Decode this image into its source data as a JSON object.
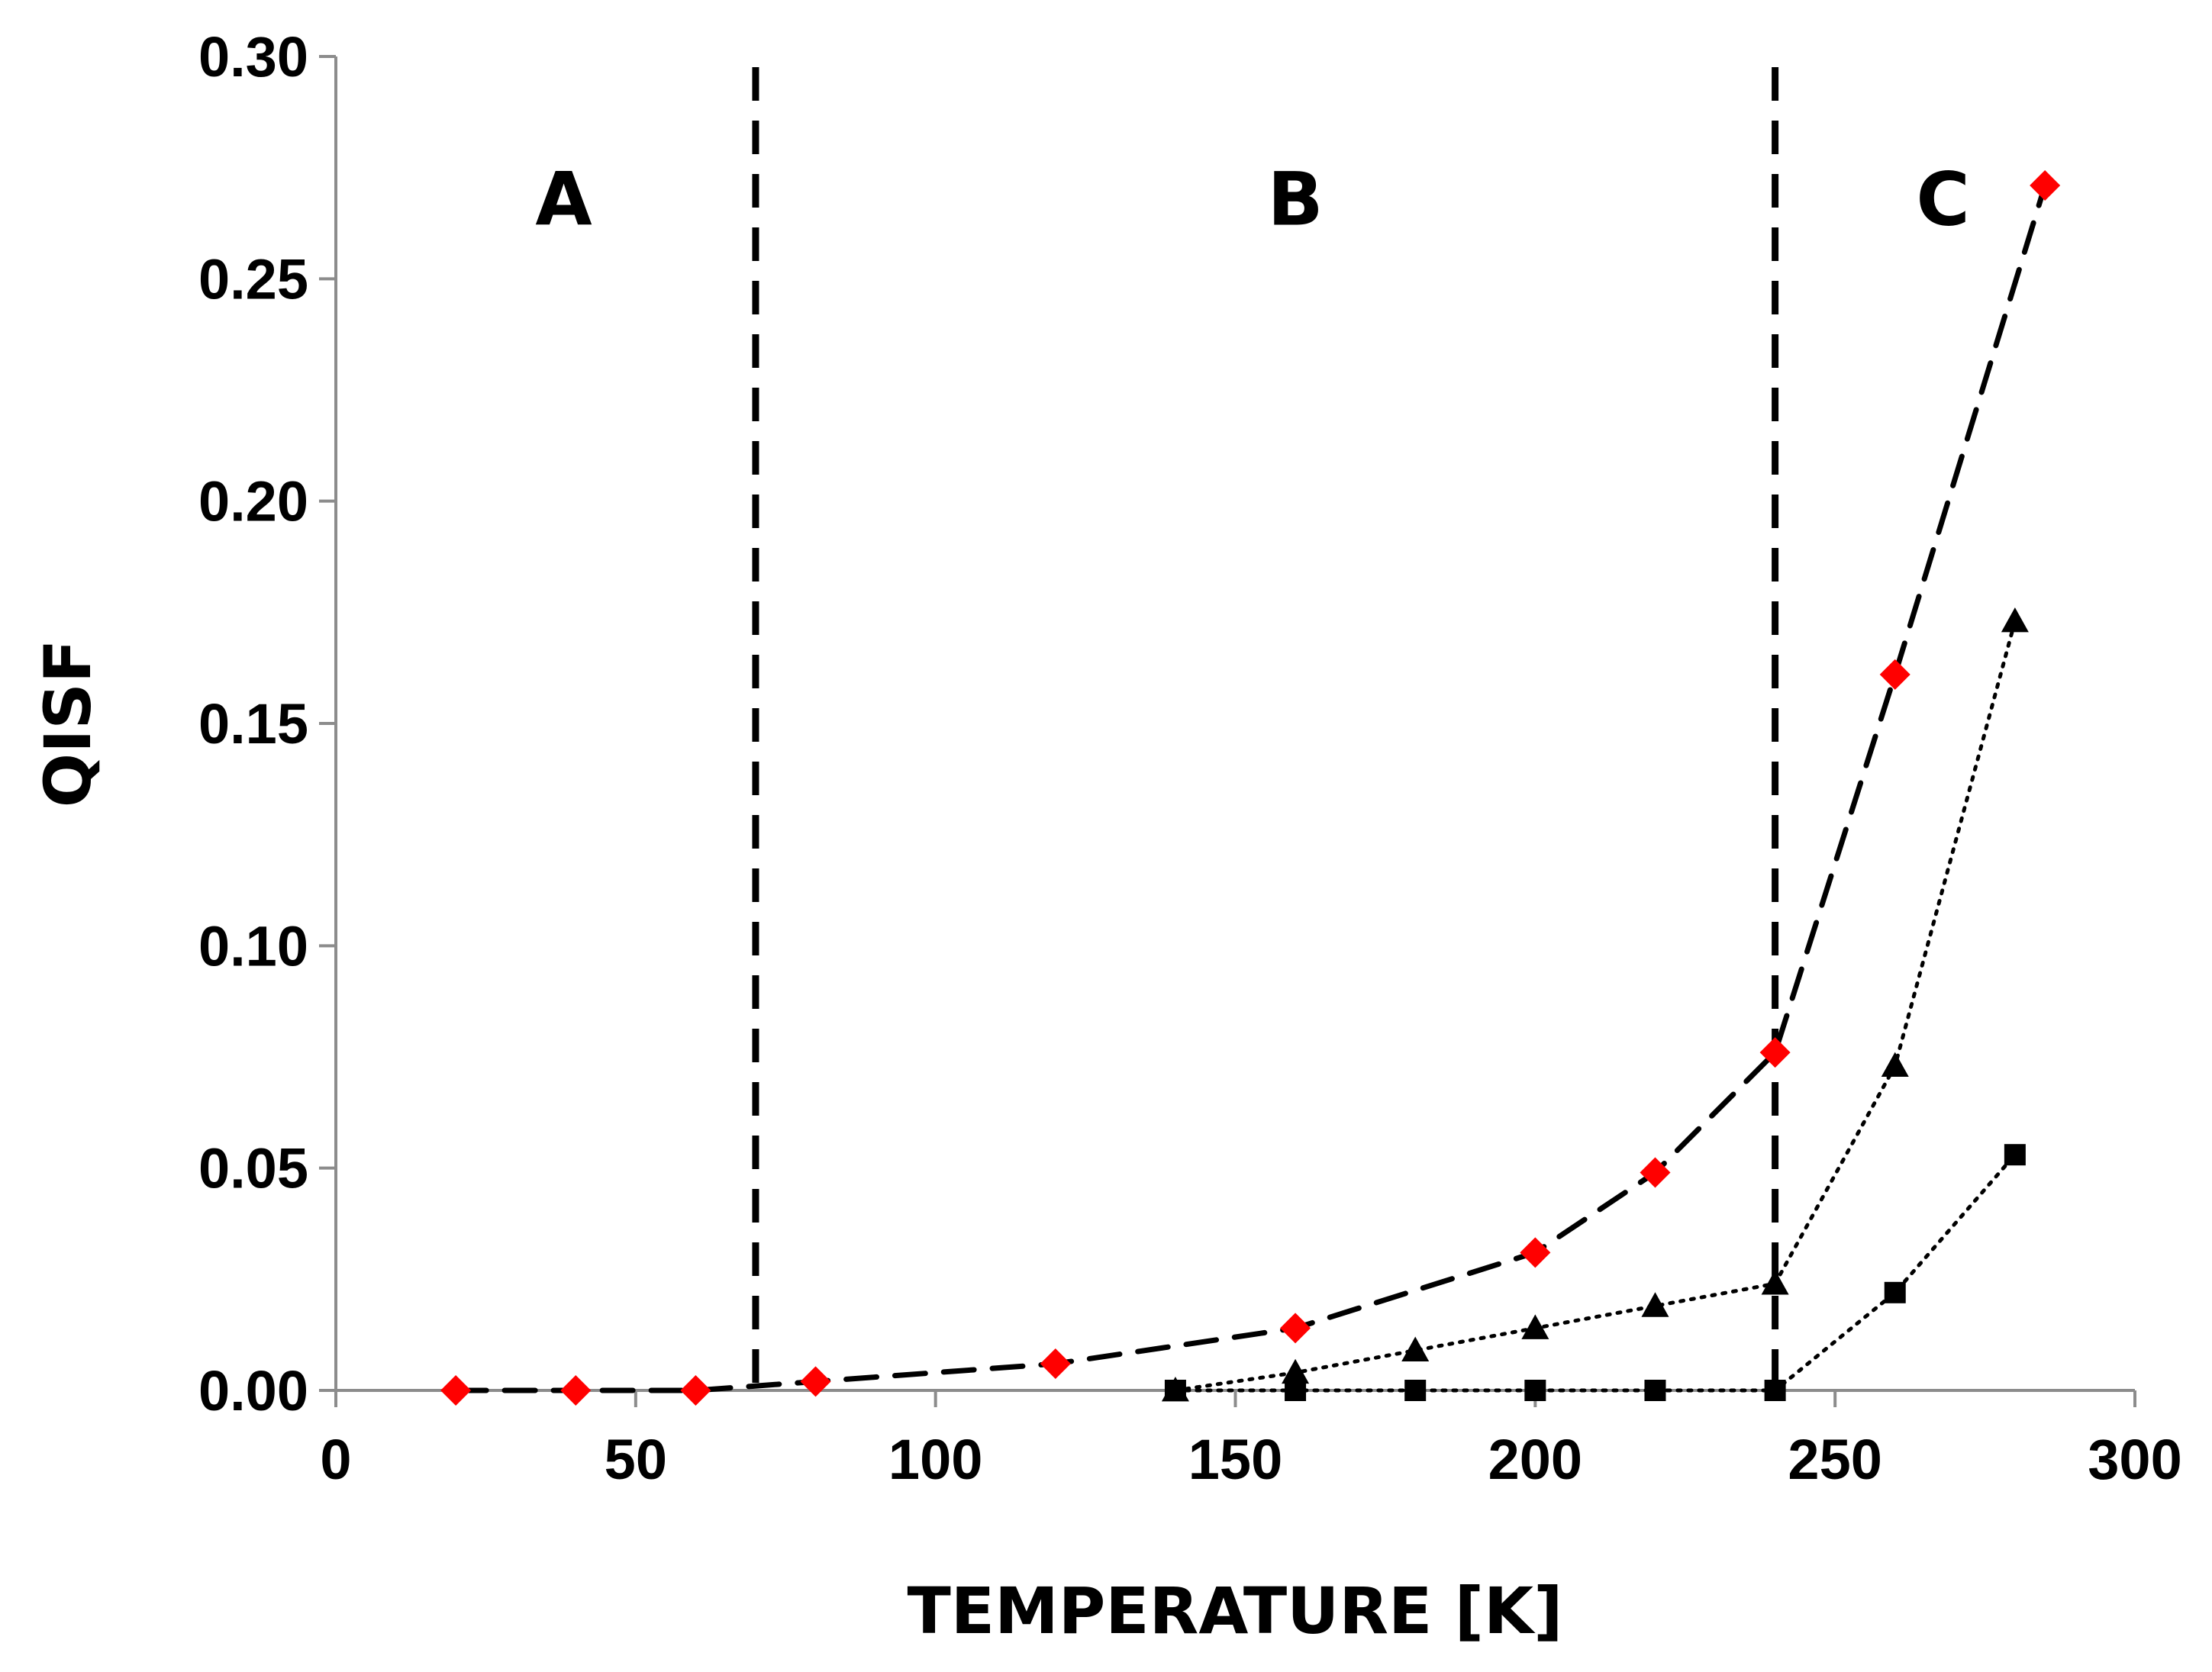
{
  "chart_data": {
    "type": "scatter",
    "title": "",
    "xlabel": "TEMPERATURE [K]",
    "ylabel": "QISF",
    "xlim": [
      0,
      300
    ],
    "ylim": [
      0,
      0.3
    ],
    "x_ticks": [
      0,
      50,
      100,
      150,
      200,
      250,
      300
    ],
    "x_tick_labels": [
      "0",
      "50",
      "100",
      "150",
      "200",
      "250",
      "300"
    ],
    "y_ticks": [
      0,
      0.05,
      0.1,
      0.15,
      0.2,
      0.25,
      0.3
    ],
    "y_tick_labels": [
      "0.00",
      "0.05",
      "0.10",
      "0.15",
      "0.20",
      "0.25",
      "0.30"
    ],
    "grid": false,
    "legend": "none",
    "region_boundaries": [
      70,
      240
    ],
    "regions": [
      {
        "label": "A",
        "x": 38
      },
      {
        "label": "B",
        "x": 160
      },
      {
        "label": "C",
        "x": 268
      }
    ],
    "region_label_y": 0.268,
    "series": [
      {
        "name": "diamond series",
        "marker": "diamond",
        "color": "#ff0000",
        "line_style": "dashed",
        "x": [
          20,
          40,
          60,
          80,
          120,
          160,
          200,
          220,
          240,
          260,
          285
        ],
        "y": [
          0.0,
          0.0,
          0.0,
          0.002,
          0.006,
          0.014,
          0.031,
          0.049,
          0.076,
          0.161,
          0.271
        ]
      },
      {
        "name": "triangle series",
        "marker": "triangle",
        "color": "#000000",
        "line_style": "dotted",
        "x": [
          140,
          160,
          180,
          200,
          220,
          240,
          260,
          280
        ],
        "y": [
          0.0,
          0.004,
          0.009,
          0.014,
          0.019,
          0.024,
          0.073,
          0.173
        ]
      },
      {
        "name": "square series",
        "marker": "square",
        "color": "#000000",
        "line_style": "dotted",
        "x": [
          140,
          160,
          180,
          200,
          220,
          240,
          260,
          280
        ],
        "y": [
          0.0,
          0.0,
          0.0,
          0.0,
          0.0,
          0.0,
          0.022,
          0.053
        ]
      }
    ]
  }
}
